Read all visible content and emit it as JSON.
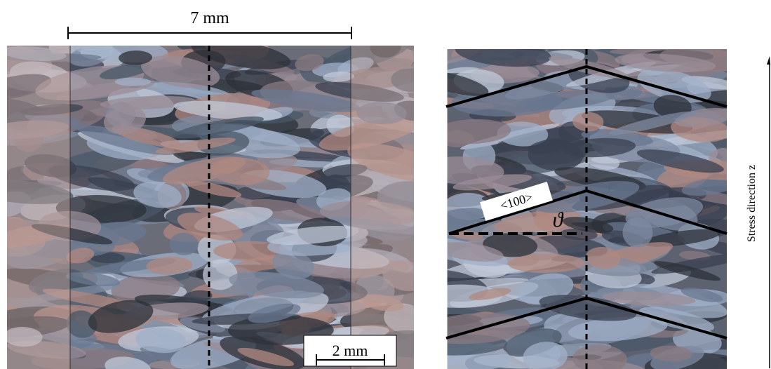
{
  "left_panel": {
    "width_label": "7 mm",
    "scale_bar_label": "2 mm"
  },
  "right_panel": {
    "direction_label": "<100>",
    "angle_label": "ϑ",
    "axis_label": "Stress direction z"
  }
}
